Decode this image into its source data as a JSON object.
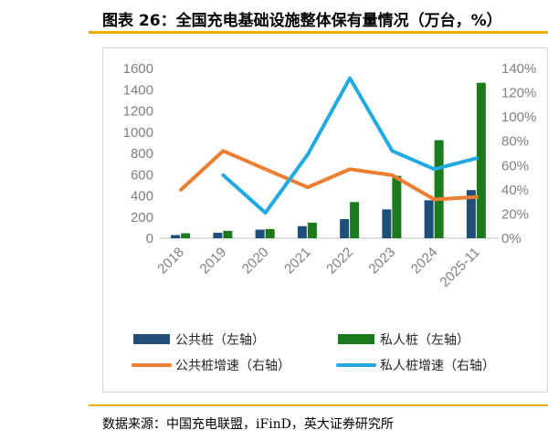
{
  "header": {
    "title": "图表 26：全国充电基础设施整体保有量情况（万台，%）"
  },
  "footer": {
    "source": "数据来源：中国充电联盟，iFinD，英大证券研究所"
  },
  "chart_data": {
    "type": "bar",
    "categories": [
      "2018",
      "2019",
      "2020",
      "2021",
      "2022",
      "2023",
      "2024",
      "2025-11"
    ],
    "left_axis": {
      "range": [
        0,
        1600
      ],
      "ticks": [
        "0",
        "200",
        "400",
        "600",
        "800",
        "1000",
        "1200",
        "1400",
        "1600"
      ]
    },
    "right_axis": {
      "range": [
        0,
        140
      ],
      "ticks": [
        "0%",
        "20%",
        "40%",
        "60%",
        "80%",
        "100%",
        "120%",
        "140%"
      ]
    },
    "series": [
      {
        "name": "公共桩（左轴）",
        "kind": "bar",
        "axis": "left",
        "color": "#1F4E79",
        "values": [
          30,
          52,
          81,
          114,
          180,
          272,
          358,
          454
        ]
      },
      {
        "name": "私人桩（左轴）",
        "kind": "bar",
        "axis": "left",
        "color": "#1B7A1B",
        "values": [
          47,
          70,
          87,
          147,
          341,
          588,
          924,
          1465
        ]
      },
      {
        "name": "公共桩增速（右轴）",
        "kind": "line",
        "axis": "right",
        "color": "#ED7D31",
        "values": [
          40,
          72,
          57,
          42,
          57,
          52,
          32,
          34
        ]
      },
      {
        "name": "私人桩增速（右轴）",
        "kind": "line",
        "axis": "right",
        "color": "#21A9E1",
        "values": [
          null,
          52,
          21,
          69,
          132,
          72,
          57,
          66
        ]
      }
    ],
    "legend": "bottom",
    "grid": false
  }
}
